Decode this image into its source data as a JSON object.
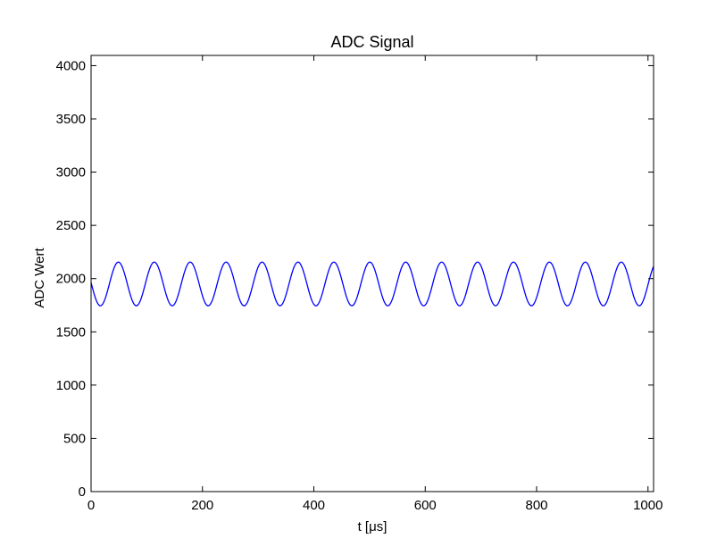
{
  "chart_data": {
    "type": "line",
    "title": "ADC Signal",
    "xlabel": "t [μs]",
    "ylabel": "ADC Wert",
    "xlim": [
      0,
      1010
    ],
    "ylim": [
      0,
      4096
    ],
    "x_ticks": [
      0,
      200,
      400,
      600,
      800,
      1000
    ],
    "y_ticks": [
      0,
      500,
      1000,
      1500,
      2000,
      2500,
      3000,
      3500,
      4000
    ],
    "grid": false,
    "series": [
      {
        "color": "#0000ff",
        "signal": {
          "offset": 1950,
          "amplitude": 205,
          "period_us": 64.5,
          "start_value": 1950,
          "peak_first_at_us": 49
        },
        "x_range": [
          0,
          1010
        ]
      }
    ]
  }
}
